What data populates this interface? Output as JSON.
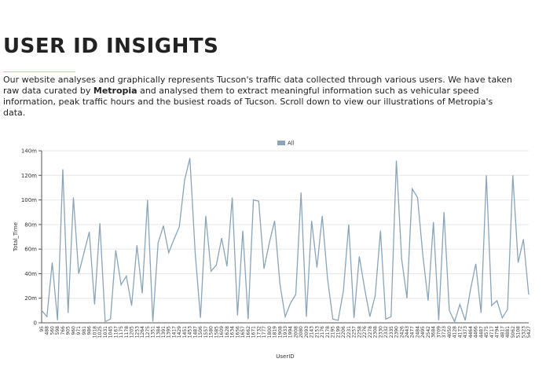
{
  "page": {
    "heading": "USER ID INSIGHTS",
    "intro": [
      {
        "text": "Our website analyses and graphically represents Tucson's traffic data collected through various users. We have taken raw data curated by ",
        "bold": false
      },
      {
        "text": "Metropia",
        "bold": true
      },
      {
        "text": " and analysed them to extract meaningful information such as vehicular speed information, peak traffic hours and the busiest roads of Tucson. Scroll down to view our illustrations of Metropia's data.",
        "bold": false
      }
    ]
  },
  "chart_data": {
    "type": "line",
    "x_label": "UserID",
    "y_label": "Total_Time",
    "categories": [
      "95",
      "488",
      "560",
      "598",
      "766",
      "905",
      "960",
      "971",
      "981",
      "986",
      "1018",
      "1025",
      "1031",
      "1045",
      "1167",
      "1175",
      "1178",
      "1205",
      "1253",
      "1264",
      "1275",
      "1351",
      "1384",
      "1391",
      "1395",
      "1417",
      "1429",
      "1451",
      "1453",
      "1487",
      "1506",
      "1557",
      "1580",
      "1585",
      "1609",
      "1628",
      "1634",
      "1656",
      "1657",
      "1662",
      "1671",
      "1732",
      "1777",
      "1800",
      "1819",
      "1908",
      "1933",
      "1994",
      "2008",
      "2080",
      "2093",
      "2143",
      "2153",
      "2176",
      "2178",
      "2195",
      "2199",
      "2206",
      "2231",
      "2257",
      "2258",
      "2276",
      "2278",
      "2308",
      "2330",
      "2332",
      "2335",
      "2390",
      "2426",
      "2443",
      "2477",
      "2484",
      "2495",
      "2542",
      "3684",
      "3709",
      "3723",
      "4050",
      "4128",
      "4172",
      "4373",
      "4464",
      "4466",
      "4487",
      "4575",
      "4717",
      "4794",
      "4817",
      "4881",
      "5062",
      "5108",
      "5323",
      "5427"
    ],
    "series": [
      {
        "name": "All",
        "color": "#8aa4b8",
        "values": [
          10,
          5,
          49,
          2,
          125,
          8,
          102,
          40,
          57,
          74,
          15,
          81,
          1,
          3,
          59,
          31,
          38,
          14,
          63,
          24,
          100,
          1,
          65,
          79,
          57,
          68,
          78,
          116,
          134,
          57,
          4,
          87,
          42,
          47,
          69,
          46,
          102,
          6,
          75,
          3,
          100,
          99,
          44,
          65,
          83,
          32,
          5,
          16,
          23,
          106,
          5,
          83,
          45,
          87,
          36,
          3,
          2,
          26,
          80,
          4,
          54,
          28,
          5,
          22,
          75,
          3,
          5,
          132,
          52,
          20,
          109,
          102,
          55,
          18,
          82,
          2,
          90,
          10,
          1,
          15,
          2,
          27,
          48,
          8,
          120,
          14,
          18,
          4,
          11,
          120,
          49,
          68,
          23
        ]
      }
    ],
    "ylim": [
      0,
      140
    ],
    "yticks": [
      {
        "value": 0,
        "label": "0"
      },
      {
        "value": 20,
        "label": "20m"
      },
      {
        "value": 40,
        "label": "40m"
      },
      {
        "value": 60,
        "label": "60m"
      },
      {
        "value": 80,
        "label": "80m"
      },
      {
        "value": 100,
        "label": "100m"
      },
      {
        "value": 120,
        "label": "120m"
      },
      {
        "value": 140,
        "label": "140m"
      }
    ],
    "grid": true,
    "legend": "top"
  }
}
